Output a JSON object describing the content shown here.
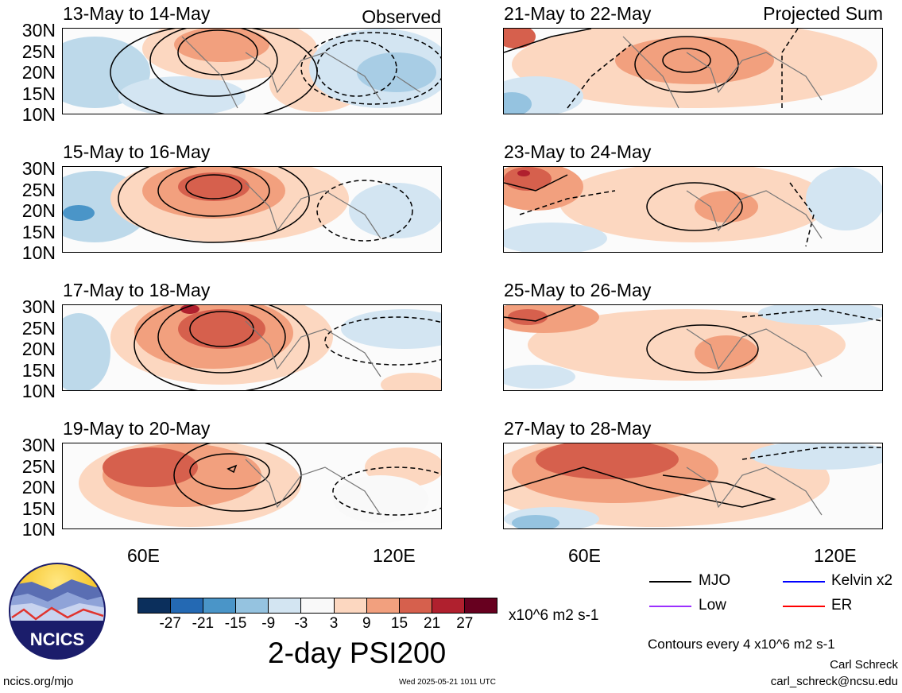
{
  "panels": [
    {
      "title": "13-May to 14-May",
      "tag": "Observed"
    },
    {
      "title": "15-May to 16-May",
      "tag": ""
    },
    {
      "title": "17-May to 18-May",
      "tag": ""
    },
    {
      "title": "19-May to 20-May",
      "tag": ""
    },
    {
      "title": "21-May to 22-May",
      "tag": "Projected Sum"
    },
    {
      "title": "23-May to 24-May",
      "tag": ""
    },
    {
      "title": "25-May to 26-May",
      "tag": ""
    },
    {
      "title": "27-May to 28-May",
      "tag": ""
    }
  ],
  "lat_labels": [
    "30N",
    "25N",
    "20N",
    "15N",
    "10N"
  ],
  "lon_labels": [
    "60E",
    "120E"
  ],
  "colorbar": {
    "ticks": [
      "-27",
      "-21",
      "-15",
      "-9",
      "-3",
      "3",
      "9",
      "15",
      "21",
      "27"
    ],
    "colors": [
      "#0b2f5c",
      "#2469b3",
      "#4a95c8",
      "#95c3e0",
      "#d3e5f2",
      "#f9f9f9",
      "#fcd7c0",
      "#f2a07e",
      "#d6604d",
      "#b0202e",
      "#67001f"
    ],
    "units": "x10^6 m2 s-1",
    "title": "2-day PSI200"
  },
  "legend": {
    "items": [
      {
        "label": "MJO",
        "color": "#000000"
      },
      {
        "label": "Kelvin x2",
        "color": "#0000ff"
      },
      {
        "label": "Low",
        "color": "#9b30ff"
      },
      {
        "label": "ER",
        "color": "#ff0000"
      }
    ],
    "contours_note": "Contours every 4 x10^6 m2 s-1"
  },
  "logo_text": "NCICS",
  "footer": {
    "url": "ncics.org/mjo",
    "timestamp": "Wed 2025-05-21 1011 UTC",
    "author": "Carl Schreck",
    "email": "carl_schreck@ncsu.edu"
  }
}
